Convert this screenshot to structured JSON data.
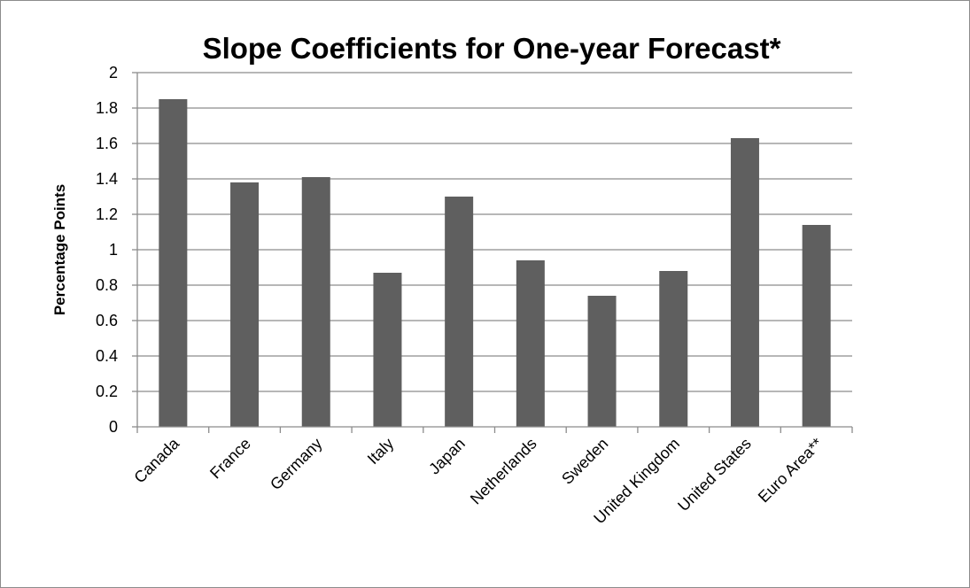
{
  "chart_data": {
    "type": "bar",
    "title": "Slope Coefficients for One-year Forecast*",
    "xlabel": "",
    "ylabel": "Percentage Points",
    "categories": [
      "Canada",
      "France",
      "Germany",
      "Italy",
      "Japan",
      "Netherlands",
      "Sweden",
      "United Kingdom",
      "United States",
      "Euro Area**"
    ],
    "values": [
      1.85,
      1.38,
      1.41,
      0.87,
      1.3,
      0.94,
      0.74,
      0.88,
      1.63,
      1.14
    ],
    "ylim": [
      0,
      2
    ],
    "yticks": [
      "0",
      "0.2",
      "0.4",
      "0.6",
      "0.8",
      "1",
      "1.2",
      "1.4",
      "1.6",
      "1.8",
      "2"
    ],
    "grid": true,
    "legend": "none",
    "bar_color": "#5f5f5f",
    "grid_color": "#8c8c8c"
  }
}
